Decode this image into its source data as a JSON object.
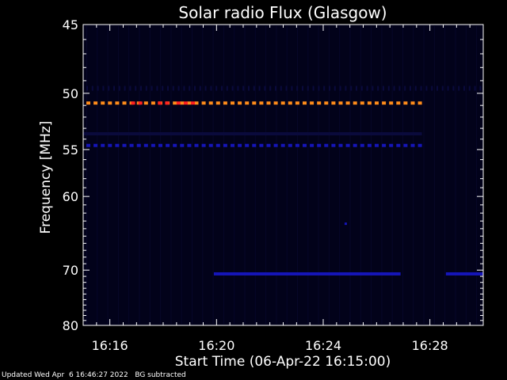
{
  "chart_data": {
    "type": "heatmap",
    "title": "Solar radio Flux (Glasgow)",
    "xlabel": "Start Time (06-Apr-22 16:15:00)",
    "ylabel_main": "Frequency ",
    "ylabel_unit": "[MHz]",
    "x_tick_labels": [
      "16:16",
      "16:20",
      "16:24",
      "16:28"
    ],
    "x_ticks_min": [
      1,
      5,
      9,
      13
    ],
    "xlim_min": [
      0,
      15
    ],
    "y_tick_labels": [
      "45",
      "50",
      "55",
      "60",
      "70",
      "80"
    ],
    "y_ticks_mhz": [
      45,
      50,
      55,
      60,
      70,
      80
    ],
    "ylim_mhz": [
      45,
      80
    ],
    "y_scale": "reciprocal",
    "colors": {
      "background": "#000000",
      "plot_bg": "#02021a",
      "faint": "#0a0a3c",
      "blue": "#1515b8",
      "orange": "#ff8c1a",
      "red": "#ff2020",
      "axes": "#ffffff"
    },
    "bands": [
      {
        "freq": 49.6,
        "from": 0,
        "to": 15,
        "style": "dots",
        "color": "faint"
      },
      {
        "freq": 50.8,
        "from": 0,
        "to": 12.7,
        "style": "dashes",
        "color": "orange"
      },
      {
        "freq": 53.5,
        "from": 0,
        "to": 12.7,
        "style": "line",
        "color": "faint"
      },
      {
        "freq": 54.6,
        "from": 0,
        "to": 12.7,
        "style": "dashes",
        "color": "blue"
      },
      {
        "freq": 70.6,
        "from": 4.9,
        "to": 11.9,
        "style": "line",
        "color": "blue"
      },
      {
        "freq": 70.6,
        "from": 13.6,
        "to": 15,
        "style": "line",
        "color": "blue"
      }
    ],
    "red_segments_min": [
      [
        1.8,
        2.2
      ],
      [
        2.8,
        3.2
      ],
      [
        3.5,
        4.2
      ]
    ]
  },
  "footer": {
    "updated": "Updated Wed Apr  6 16:46:27 2022",
    "note": "BG subtracted"
  }
}
